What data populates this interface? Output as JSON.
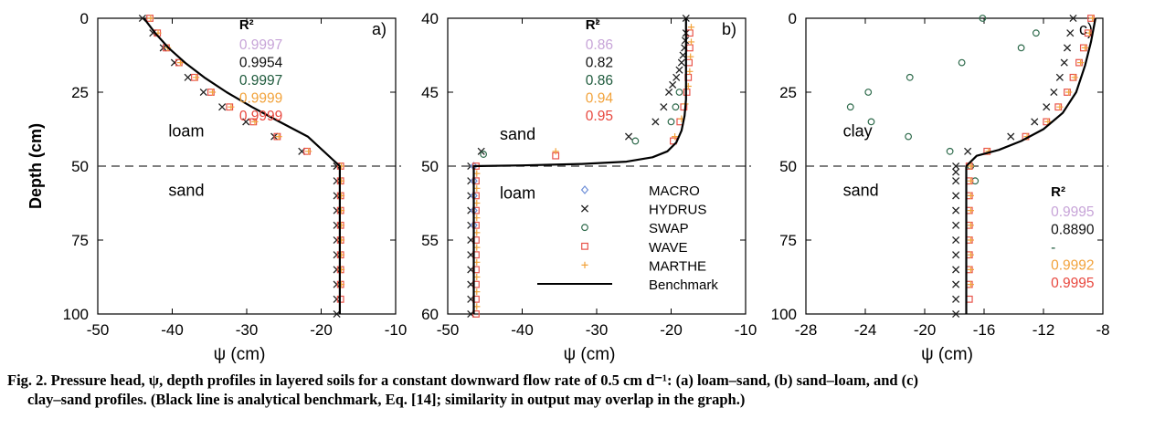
{
  "colors": {
    "MACRO": "#6f8fd8",
    "HYDRUS": "#202020",
    "SWAP": "#2f6b4c",
    "WAVE": "#e8534a",
    "MARTHE": "#f2a33c",
    "Benchmark": "#000000",
    "r2_MACRO": "#c7a4d8",
    "r2_HYDRUS": "#101010",
    "r2_SWAP": "#1e5a3c",
    "r2_MARTHE": "#f2a33c",
    "r2_WAVE": "#e8473e"
  },
  "legend": {
    "items": [
      {
        "name": "MACRO",
        "marker": "diamond"
      },
      {
        "name": "HYDRUS",
        "marker": "x"
      },
      {
        "name": "SWAP",
        "marker": "circle"
      },
      {
        "name": "WAVE",
        "marker": "square"
      },
      {
        "name": "MARTHE",
        "marker": "plus"
      },
      {
        "name": "Benchmark",
        "marker": "line"
      }
    ]
  },
  "caption": {
    "line1": "Fig. 2.  Pressure head, ψ, depth profiles in layered soils for a constant downward flow rate of 0.5 cm d⁻¹: (a) loam–sand, (b) sand–loam, and (c)",
    "line2": "clay–sand profiles. (Black line is analytical benchmark, Eq. [14]; similarity in output may overlap in the graph.)"
  },
  "chart_data": [
    {
      "type": "scatter",
      "panel_label": "a)",
      "xlabel": "ψ (cm)",
      "ylabel": "Depth (cm)",
      "xlim": [
        -50,
        -10
      ],
      "ylim": [
        100,
        0
      ],
      "y_inverted": true,
      "xticks": [
        -50,
        -40,
        -30,
        -20,
        -10
      ],
      "yticks": [
        0,
        25,
        50,
        75,
        100
      ],
      "grid": false,
      "interface_depth": 50,
      "layer_labels": [
        {
          "text": "loam",
          "x": -40.5,
          "y": 40
        },
        {
          "text": "sand",
          "x": -40.5,
          "y": 60
        }
      ],
      "r2": {
        "title": "R²",
        "anchor_x": -31,
        "anchor_y": 2.5,
        "values": [
          {
            "model": "MACRO",
            "value": "0.9997"
          },
          {
            "model": "HYDRUS",
            "value": "0.9954"
          },
          {
            "model": "SWAP",
            "value": "0.9997"
          },
          {
            "model": "MARTHE",
            "value": "0.9999"
          },
          {
            "model": "WAVE",
            "value": "0.9999"
          }
        ]
      },
      "series": [
        {
          "name": "Benchmark",
          "style": "line",
          "x": [
            -43.8,
            -42.3,
            -40.5,
            -38.3,
            -35.7,
            -32.7,
            -29.3,
            -25.6,
            -21.8,
            -17.5,
            -17.5
          ],
          "y": [
            0,
            5,
            10,
            15,
            20,
            25,
            30,
            35,
            40,
            50,
            100
          ]
        },
        {
          "name": "HYDRUS",
          "style": "x",
          "x": [
            -44.0,
            -42.6,
            -41.2,
            -39.7,
            -37.9,
            -35.8,
            -33.3,
            -30.1,
            -26.3,
            -22.6,
            -17.9,
            -17.9,
            -17.9,
            -17.9,
            -17.9,
            -17.9,
            -17.9,
            -17.9,
            -17.9,
            -17.9,
            -17.9,
            -17.9
          ],
          "y": [
            0,
            5,
            10,
            15,
            20,
            25,
            30,
            35,
            40,
            45,
            50,
            55,
            60,
            65,
            70,
            75,
            80,
            85,
            90,
            95,
            100,
            50
          ]
        },
        {
          "name": "WAVE",
          "style": "square",
          "x": [
            -43.0,
            -42.0,
            -40.8,
            -39.1,
            -37.0,
            -34.8,
            -32.3,
            -29.1,
            -25.9,
            -21.9,
            -17.4,
            -17.4,
            -17.4,
            -17.4,
            -17.4,
            -17.4,
            -17.4,
            -17.4,
            -17.4,
            -17.4
          ],
          "y": [
            0,
            5,
            10,
            15,
            20,
            25,
            30,
            35,
            40,
            45,
            50,
            55,
            60,
            65,
            70,
            75,
            80,
            85,
            90,
            95
          ]
        },
        {
          "name": "MARTHE",
          "style": "plus",
          "x": [
            -42.9,
            -41.9,
            -40.6,
            -38.9,
            -36.8,
            -34.6,
            -32.1,
            -28.9,
            -25.7,
            -21.7,
            -17.3,
            -17.3,
            -17.3,
            -17.3,
            -17.3,
            -17.3,
            -17.3,
            -17.3,
            -17.3
          ],
          "y": [
            0,
            5,
            10,
            15,
            20,
            25,
            30,
            35,
            40,
            45,
            50,
            55,
            60,
            65,
            70,
            75,
            80,
            85,
            90
          ]
        }
      ]
    },
    {
      "type": "scatter",
      "panel_label": "b)",
      "xlabel": "ψ (cm)",
      "ylabel": "",
      "xlim": [
        -50,
        -10
      ],
      "ylim": [
        60,
        40
      ],
      "y_inverted": true,
      "xticks": [
        -50,
        -40,
        -30,
        -20,
        -10
      ],
      "yticks": [
        40,
        45,
        50,
        55,
        60
      ],
      "grid": false,
      "interface_depth": 50,
      "layer_labels": [
        {
          "text": "sand",
          "x": -43,
          "y": 48.2
        },
        {
          "text": "loam",
          "x": -43,
          "y": 52.2
        }
      ],
      "r2": {
        "title": "R²",
        "anchor_x": -31.5,
        "anchor_y": 40.5,
        "values": [
          {
            "model": "MACRO",
            "value": "0.86"
          },
          {
            "model": "HYDRUS",
            "value": "0.82"
          },
          {
            "model": "SWAP",
            "value": "0.86"
          },
          {
            "model": "MARTHE",
            "value": "0.94"
          },
          {
            "model": "WAVE",
            "value": "0.95"
          }
        ]
      },
      "series": [
        {
          "name": "Benchmark",
          "style": "line",
          "x": [
            -46.5,
            -46.5,
            -40.0,
            -32.0,
            -26.0,
            -22.5,
            -20.5,
            -19.3,
            -18.6,
            -18.2,
            -18.0,
            -18.0
          ],
          "y": [
            60,
            50,
            49.95,
            49.85,
            49.7,
            49.4,
            49.0,
            48.4,
            47.6,
            46.6,
            45.5,
            40
          ]
        },
        {
          "name": "HYDRUS",
          "style": "x",
          "x": [
            -46.9,
            -46.9,
            -46.9,
            -46.9,
            -46.9,
            -46.9,
            -46.9,
            -46.9,
            -46.9,
            -46.9,
            -46.9,
            -45.5,
            -25.7,
            -22.1,
            -21.0,
            -20.3,
            -19.8,
            -19.3,
            -18.9,
            -18.6,
            -18.4,
            -18.2,
            -18.1,
            -18.0,
            -18.0
          ],
          "y": [
            60,
            59,
            58,
            57,
            56,
            55,
            54,
            53,
            52,
            51,
            50,
            49,
            48,
            47,
            46,
            45,
            44.5,
            44,
            43.5,
            43,
            42.5,
            42,
            41.5,
            41,
            40
          ]
        },
        {
          "name": "SWAP",
          "style": "circle",
          "x": [
            -45.2,
            -24.8,
            -20.0,
            -19.4,
            -18.9
          ],
          "y": [
            49.2,
            48.3,
            47.0,
            46.0,
            45.0
          ]
        },
        {
          "name": "MACRO",
          "style": "diamond",
          "x": [
            -46.5,
            -46.5,
            -46.5,
            -46.5,
            -46.5
          ],
          "y": [
            50,
            51,
            52,
            53,
            54
          ]
        },
        {
          "name": "WAVE",
          "style": "square",
          "x": [
            -46.2,
            -46.2,
            -46.2,
            -46.2,
            -46.2,
            -46.2,
            -46.2,
            -46.2,
            -46.2,
            -46.2,
            -46.2,
            -35.5,
            -19.7,
            -18.8,
            -18.3,
            -17.9,
            -17.7,
            -17.6,
            -17.5,
            -17.5
          ],
          "y": [
            60,
            59,
            58,
            57,
            56,
            55,
            54,
            53,
            52,
            51,
            50,
            49.3,
            48.3,
            47,
            46,
            45,
            44,
            43,
            42,
            41
          ]
        },
        {
          "name": "MARTHE",
          "style": "plus",
          "x": [
            -46.1,
            -46.1,
            -46.1,
            -46.1,
            -46.1,
            -46.1,
            -46.1,
            -46.1,
            -46.1,
            -46.1,
            -35.5,
            -19.5,
            -18.6,
            -18.1,
            -17.7,
            -17.5,
            -17.4,
            -17.3,
            -17.3
          ],
          "y": [
            59.5,
            58.5,
            57.5,
            56.5,
            55.5,
            54.5,
            53.5,
            52.5,
            51.5,
            50.5,
            49.0,
            48.0,
            46.8,
            45.8,
            44.6,
            43.6,
            42.6,
            41.6,
            40.6
          ]
        }
      ]
    },
    {
      "type": "scatter",
      "panel_label": "c)",
      "xlabel": "ψ (cm)",
      "ylabel": "",
      "xlim": [
        -28,
        -8
      ],
      "ylim": [
        100,
        0
      ],
      "y_inverted": true,
      "xticks": [
        -28,
        -24,
        -20,
        -16,
        -12,
        -8
      ],
      "yticks": [
        0,
        25,
        50,
        75,
        100
      ],
      "grid": false,
      "interface_depth": 50,
      "layer_labels": [
        {
          "text": "clay",
          "x": -25.5,
          "y": 40
        },
        {
          "text": "sand",
          "x": -25.5,
          "y": 60
        }
      ],
      "r2": {
        "title": "R²",
        "anchor_x": -11.5,
        "anchor_y": 59,
        "values": [
          {
            "model": "MACRO",
            "value": "0.9995"
          },
          {
            "model": "HYDRUS",
            "value": "0.8890"
          },
          {
            "model": "SWAP",
            "value": "-"
          },
          {
            "model": "MARTHE",
            "value": "0.9992"
          },
          {
            "model": "WAVE",
            "value": "0.9995"
          }
        ]
      },
      "series": [
        {
          "name": "Benchmark",
          "style": "line",
          "x": [
            -17.2,
            -17.2,
            -16.5,
            -15.0,
            -13.5,
            -12.0,
            -10.7,
            -9.8,
            -9.2,
            -8.8,
            -8.5
          ],
          "y": [
            100,
            50,
            46.5,
            44.5,
            41.5,
            37.5,
            32,
            25,
            16,
            8,
            0
          ]
        },
        {
          "name": "SWAP",
          "style": "circle",
          "x": [
            -16.1,
            -12.5,
            -13.5,
            -17.5,
            -21.0,
            -23.8,
            -25.0,
            -23.6,
            -21.1,
            -18.3,
            -16.9,
            -16.6
          ],
          "y": [
            0,
            5,
            10,
            15,
            20,
            25,
            30,
            35,
            40,
            45,
            50,
            55
          ]
        },
        {
          "name": "HYDRUS",
          "style": "x",
          "x": [
            -10.0,
            -10.2,
            -10.4,
            -10.6,
            -10.9,
            -11.3,
            -11.8,
            -12.6,
            -14.2,
            -17.1,
            -17.9,
            -17.9,
            -17.9,
            -17.9,
            -17.9,
            -17.9,
            -17.9,
            -17.9,
            -17.9,
            -17.9,
            -17.9,
            -17.9
          ],
          "y": [
            0,
            5,
            10,
            15,
            20,
            25,
            30,
            35,
            40,
            45,
            50,
            55,
            60,
            65,
            70,
            75,
            80,
            85,
            90,
            95,
            100,
            52
          ]
        },
        {
          "name": "WAVE",
          "style": "square",
          "x": [
            -8.8,
            -9.0,
            -9.3,
            -9.6,
            -10.0,
            -10.4,
            -11.0,
            -11.8,
            -13.2,
            -15.8,
            -17.0,
            -17.0,
            -17.0,
            -17.0,
            -17.0,
            -17.0,
            -17.0,
            -17.0,
            -17.0,
            -17.0
          ],
          "y": [
            0,
            5,
            10,
            15,
            20,
            25,
            30,
            35,
            40,
            45,
            50,
            55,
            60,
            65,
            70,
            75,
            80,
            85,
            90,
            95
          ]
        },
        {
          "name": "MARTHE",
          "style": "plus",
          "x": [
            -8.7,
            -8.9,
            -9.2,
            -9.5,
            -9.9,
            -10.3,
            -10.9,
            -11.7,
            -13.1,
            -15.7,
            -16.9,
            -16.9,
            -16.9,
            -16.9,
            -16.9,
            -16.9,
            -16.9,
            -16.9,
            -16.9
          ],
          "y": [
            0,
            5,
            10,
            15,
            20,
            25,
            30,
            35,
            40,
            45,
            50,
            55,
            60,
            65,
            70,
            75,
            80,
            85,
            90
          ]
        }
      ]
    }
  ]
}
